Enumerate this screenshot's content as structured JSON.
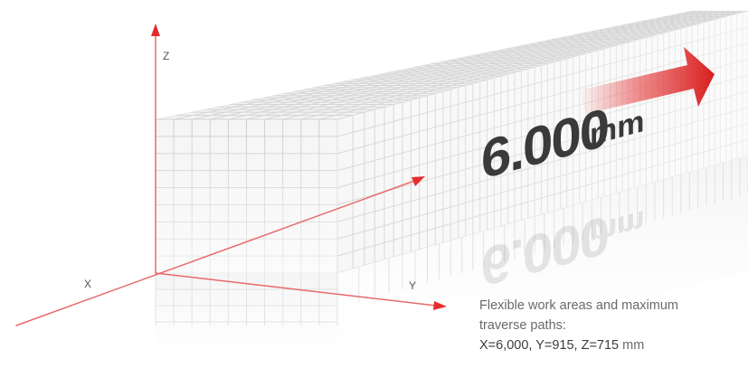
{
  "axes": {
    "x_label": "X",
    "y_label": "Y",
    "z_label": "Z"
  },
  "banner": {
    "value": "6.000",
    "unit": "mm"
  },
  "caption": {
    "line1": "Flexible work areas and maximum",
    "line2": "traverse paths:",
    "values": "X=6,000, Y=915, Z=715",
    "unit": "mm"
  },
  "colors": {
    "accent": "#e32d2d",
    "axis": "#e86a6a",
    "grid": "#cfcfcf",
    "text_dark": "#3a3a3a",
    "text_muted": "#6a6a6a"
  }
}
